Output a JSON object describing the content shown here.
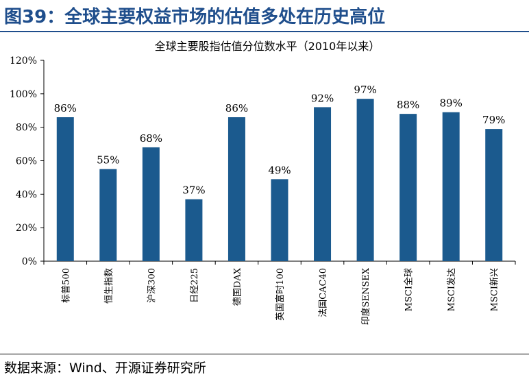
{
  "figure_title": "图39：全球主要权益市场的估值多处在历史高位",
  "source": "数据来源：Wind、开源证券研究所",
  "colors": {
    "bar": "#1b5a8e",
    "title": "#1f4e8c"
  },
  "chart_data": {
    "type": "bar",
    "title": "全球主要股指估值分位数水平（2010年以来）",
    "xlabel": "",
    "ylabel": "",
    "ylim": [
      0,
      120
    ],
    "yticks": [
      "0%",
      "20%",
      "40%",
      "60%",
      "80%",
      "100%",
      "120%"
    ],
    "grid": false,
    "categories": [
      "标普500",
      "恒生指数",
      "沪深300",
      "日经225",
      "德国DAX",
      "英国富时100",
      "法国CAC40",
      "印度SENSEX",
      "MSCI全球",
      "MSCI发达",
      "MSCI新兴"
    ],
    "values": [
      86,
      55,
      68,
      37,
      86,
      49,
      92,
      97,
      88,
      89,
      79
    ],
    "data_labels": [
      "86%",
      "55%",
      "68%",
      "37%",
      "86%",
      "49%",
      "92%",
      "97%",
      "88%",
      "89%",
      "79%"
    ]
  }
}
